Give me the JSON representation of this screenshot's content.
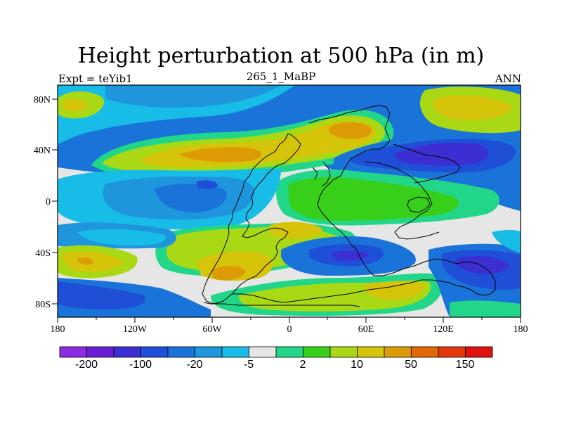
{
  "title": "Height perturbation at 500 hPa (in m)",
  "subtitle_left": "Expt = teYib1",
  "subtitle_center": "265_1_MaBP",
  "subtitle_right": "ANN",
  "lon_ticks": [
    "180",
    "120W",
    "60W",
    "0",
    "60E",
    "120E",
    "180"
  ],
  "lat_ticks": [
    "80N",
    "40N",
    "0",
    "40S",
    "80S"
  ],
  "colorbar": {
    "labels": [
      "-200",
      "-100",
      "-20",
      "-5",
      "2",
      "10",
      "50",
      "150"
    ],
    "colors": [
      "#8a2be2",
      "#6a1fd6",
      "#3b2fd2",
      "#1f4fd6",
      "#1a73d9",
      "#1e95dd",
      "#17bde6",
      "#e6e6e6",
      "#22d689",
      "#38cf1a",
      "#a9d914",
      "#d6c40a",
      "#dc9b05",
      "#e06805",
      "#e3380a",
      "#e0120f"
    ]
  },
  "map_colors": {
    "neutral": "#e6e6e6",
    "pos_light": "#22d689",
    "pos_green": "#38cf1a",
    "pos_lime": "#a9d914",
    "pos_yellow": "#d6c40a",
    "pos_orange": "#dc9b05",
    "neg_cyan": "#17bde6",
    "neg_lightblue": "#1e95dd",
    "neg_blue": "#1a73d9",
    "neg_mid": "#1f4fd6",
    "neg_dark": "#3b2fd2"
  }
}
